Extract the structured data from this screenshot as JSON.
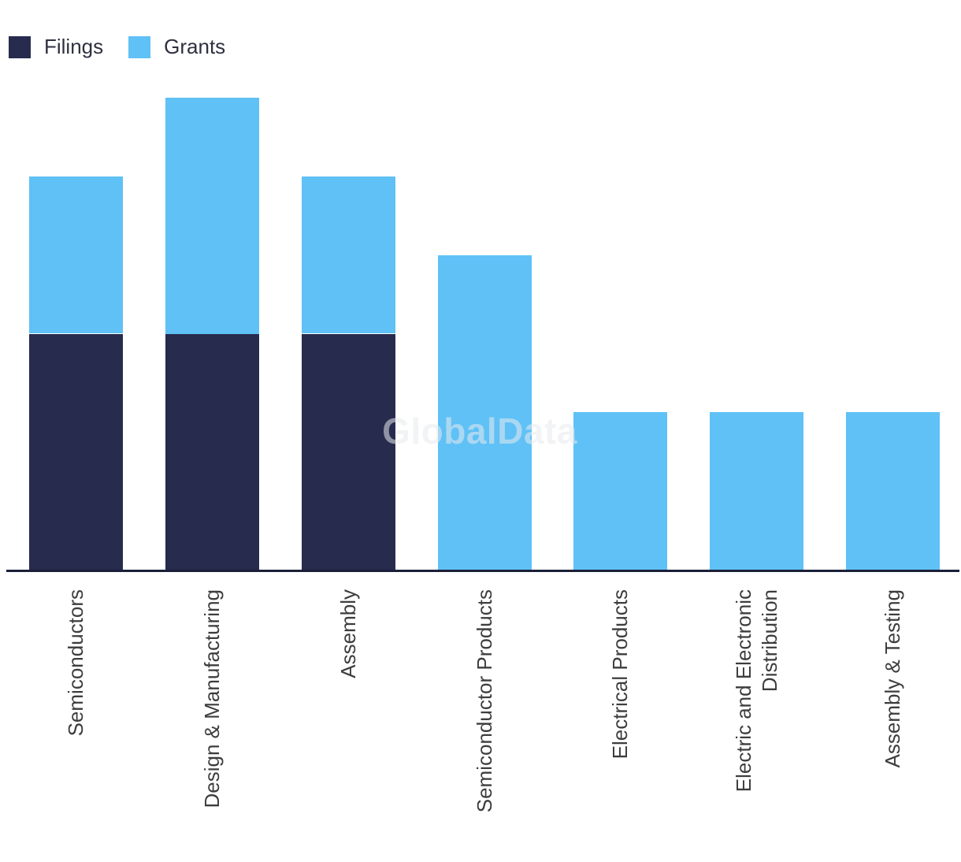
{
  "watermark": "GlobalData",
  "chart_data": {
    "type": "bar",
    "stacked": true,
    "orientation": "vertical",
    "title": "",
    "xlabel": "",
    "ylabel": "",
    "categories": [
      "Semiconductors",
      "Design & Manufacturing",
      "Assembly",
      "Semiconductor Products",
      "Electrical Products",
      "Electric and Electronic\nDistribution",
      "Assembly & Testing"
    ],
    "series": [
      {
        "name": "Filings",
        "color": "#272b4e",
        "values": [
          3,
          3,
          3,
          0,
          0,
          0,
          0
        ]
      },
      {
        "name": "Grants",
        "color": "#5fc1f6",
        "values": [
          2,
          3,
          2,
          4,
          2,
          2,
          2
        ]
      }
    ],
    "ylim": [
      0,
      6
    ],
    "y_axis_visible": false,
    "grid": false,
    "legend_position": "top-left",
    "x_tick_rotation": -90,
    "axis_color": "#1b2038"
  }
}
